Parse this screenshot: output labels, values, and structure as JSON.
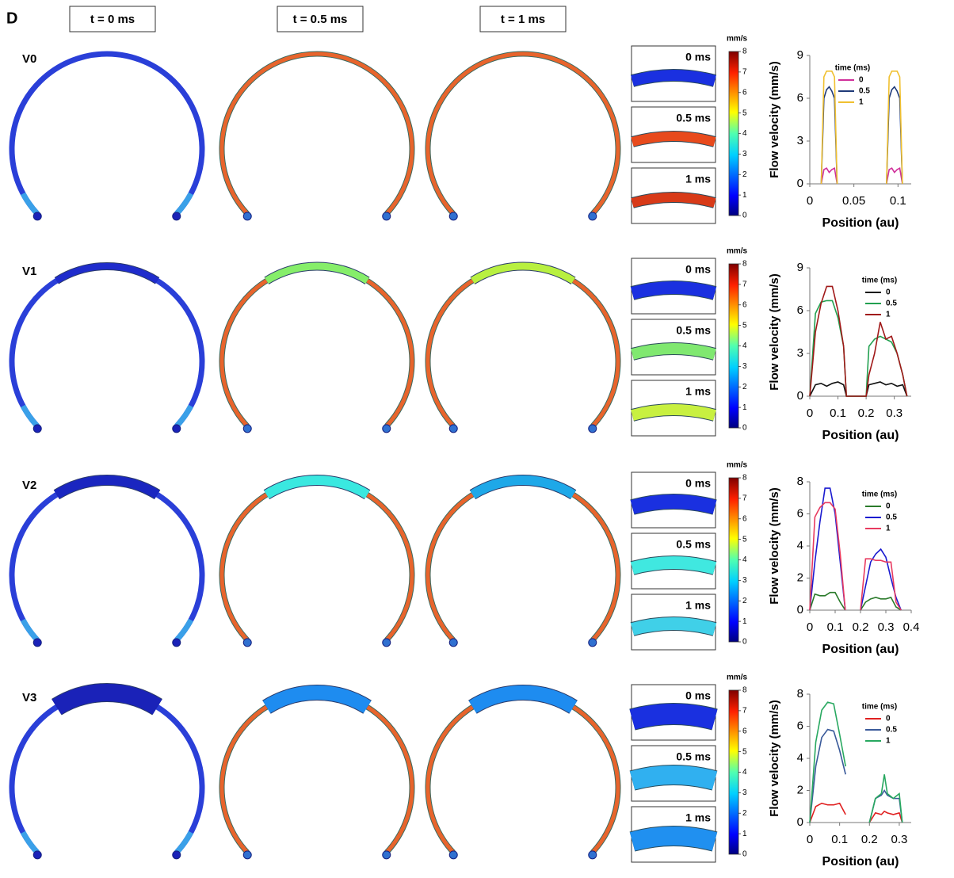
{
  "panel_label": "D",
  "column_headers": [
    "t = 0 ms",
    "t = 0.5 ms",
    "t = 1 ms"
  ],
  "row_labels": [
    "V0",
    "V1",
    "V2",
    "V3"
  ],
  "inset_labels": [
    "0 ms",
    "0.5 ms",
    "1 ms"
  ],
  "colorbar": {
    "unit": "mm/s",
    "ticks": [
      0,
      1,
      2,
      3,
      4,
      5,
      6,
      7,
      8
    ]
  },
  "chart_data": [
    {
      "type": "line",
      "xlabel": "Position (au)",
      "ylabel": "Flow velocity (mm/s)",
      "legend_title": "time (ms)",
      "legend": "upper center",
      "x": [
        0.013,
        0.016,
        0.019,
        0.022,
        0.025,
        0.028,
        0.031,
        0.05,
        0.087,
        0.09,
        0.093,
        0.096,
        0.099,
        0.102,
        0.105
      ],
      "series": [
        {
          "name": "0",
          "color": "#d0309a",
          "values": [
            0,
            1.0,
            1.1,
            0.8,
            1.0,
            1.1,
            0,
            null,
            0,
            1.0,
            1.1,
            0.8,
            1.0,
            1.1,
            0
          ]
        },
        {
          "name": "0.5",
          "color": "#1f3a78",
          "values": [
            0,
            6.0,
            6.6,
            6.8,
            6.5,
            6.0,
            0,
            null,
            0,
            6.0,
            6.6,
            6.8,
            6.5,
            6.0,
            0
          ]
        },
        {
          "name": "1",
          "color": "#f0c030",
          "values": [
            0,
            7.5,
            7.9,
            7.9,
            7.9,
            7.5,
            0,
            null,
            0,
            7.5,
            7.9,
            7.9,
            7.9,
            7.5,
            0
          ]
        }
      ],
      "xlim": [
        0,
        0.115
      ],
      "ylim": [
        0,
        9
      ],
      "xticks": [
        0,
        0.05,
        0.1
      ],
      "yticks": [
        0,
        3,
        6,
        9
      ]
    },
    {
      "type": "line",
      "xlabel": "Position (au)",
      "ylabel": "Flow velocity (mm/s)",
      "legend_title": "time (ms)",
      "legend": "upper right",
      "x": [
        0,
        0.02,
        0.04,
        0.06,
        0.08,
        0.1,
        0.12,
        0.13,
        0.2,
        0.21,
        0.23,
        0.25,
        0.27,
        0.29,
        0.31,
        0.33,
        0.345
      ],
      "series": [
        {
          "name": "0",
          "color": "#111111",
          "values": [
            0,
            0.8,
            0.9,
            0.7,
            0.9,
            1.0,
            0.8,
            0,
            0,
            0.8,
            0.9,
            1.0,
            0.8,
            0.9,
            0.7,
            0.8,
            0
          ]
        },
        {
          "name": "0.5",
          "color": "#22a050",
          "values": [
            0,
            5.8,
            6.6,
            6.7,
            6.7,
            5.5,
            3.5,
            0,
            0,
            3.5,
            4.0,
            4.2,
            4.0,
            3.8,
            3.0,
            1.5,
            0
          ]
        },
        {
          "name": "1",
          "color": "#a01818",
          "values": [
            0,
            4.5,
            6.5,
            7.7,
            7.7,
            6.0,
            3.5,
            0,
            0,
            1.5,
            3.0,
            5.2,
            4.0,
            4.2,
            3.0,
            1.5,
            0
          ]
        }
      ],
      "xlim": [
        0,
        0.36
      ],
      "ylim": [
        0,
        9
      ],
      "xticks": [
        0,
        0.1,
        0.2,
        0.3
      ],
      "yticks": [
        0,
        3,
        6,
        9
      ]
    },
    {
      "type": "line",
      "xlabel": "Position (au)",
      "ylabel": "Flow velocity (mm/s)",
      "legend_title": "time (ms)",
      "legend": "upper right",
      "x": [
        0,
        0.02,
        0.04,
        0.06,
        0.08,
        0.1,
        0.12,
        0.14,
        0.17,
        0.2,
        0.22,
        0.24,
        0.26,
        0.28,
        0.3,
        0.32,
        0.34,
        0.36
      ],
      "series": [
        {
          "name": "0",
          "color": "#2a7a2a",
          "values": [
            0,
            1.0,
            0.9,
            0.9,
            1.1,
            1.1,
            0.5,
            0,
            null,
            0,
            0.5,
            0.7,
            0.8,
            0.7,
            0.7,
            0.8,
            0.2,
            0
          ]
        },
        {
          "name": "0.5",
          "color": "#1a1ad0",
          "values": [
            0,
            3.0,
            5.5,
            7.6,
            7.6,
            6.0,
            3.0,
            0,
            null,
            0,
            1.5,
            3.0,
            3.5,
            3.8,
            3.3,
            2.0,
            0.8,
            0
          ]
        },
        {
          "name": "1",
          "color": "#e83a60",
          "values": [
            0,
            5.8,
            6.4,
            6.7,
            6.7,
            6.3,
            3.5,
            0,
            null,
            0,
            3.2,
            3.2,
            3.1,
            3.1,
            3.0,
            3.0,
            0.5,
            0
          ]
        }
      ],
      "xlim": [
        0,
        0.4
      ],
      "ylim": [
        0,
        8
      ],
      "xticks": [
        0,
        0.1,
        0.2,
        0.3,
        0.4
      ],
      "yticks": [
        0,
        2,
        4,
        6,
        8
      ]
    },
    {
      "type": "line",
      "xlabel": "Position (au)",
      "ylabel": "Flow velocity (mm/s)",
      "legend_title": "time (ms)",
      "legend": "upper right",
      "x": [
        0,
        0.02,
        0.04,
        0.06,
        0.08,
        0.1,
        0.12,
        0.16,
        0.2,
        0.22,
        0.24,
        0.25,
        0.26,
        0.28,
        0.3,
        0.31
      ],
      "series": [
        {
          "name": "0",
          "color": "#e02020",
          "values": [
            0,
            1.0,
            1.2,
            1.1,
            1.1,
            1.2,
            0.5,
            null,
            0,
            0.6,
            0.5,
            0.7,
            0.6,
            0.5,
            0.6,
            0
          ]
        },
        {
          "name": "0.5",
          "color": "#3a5a9a",
          "values": [
            0,
            3.5,
            5.3,
            5.8,
            5.7,
            4.5,
            3.0,
            null,
            0,
            1.5,
            1.7,
            2.0,
            1.7,
            1.5,
            1.5,
            0
          ]
        },
        {
          "name": "1",
          "color": "#28a860",
          "values": [
            0,
            5.0,
            7.0,
            7.5,
            7.4,
            5.5,
            3.5,
            null,
            0,
            1.5,
            1.8,
            3.0,
            1.8,
            1.5,
            1.8,
            0
          ]
        }
      ],
      "xlim": [
        0,
        0.34
      ],
      "ylim": [
        0,
        8
      ],
      "xticks": [
        0,
        0.1,
        0.2,
        0.3
      ],
      "yticks": [
        0,
        2,
        4,
        6,
        8
      ]
    }
  ]
}
